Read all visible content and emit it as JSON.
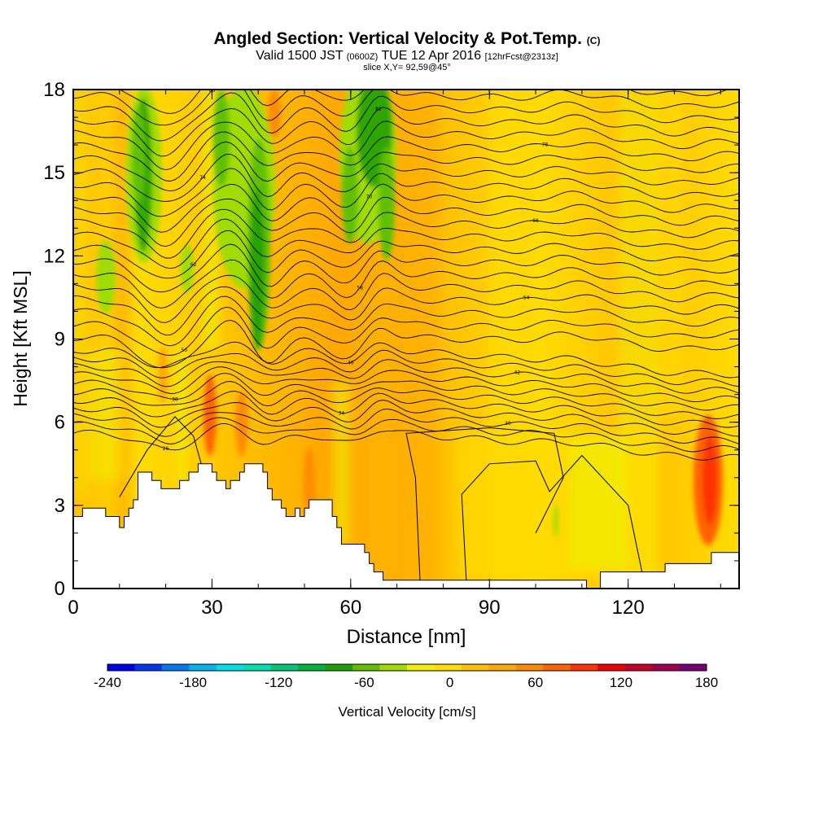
{
  "header": {
    "title_main": "Angled Section: Vertical Velocity & Pot.Temp.",
    "title_units": "(C)",
    "valid_prefix": "Valid 1500 JST",
    "valid_utc": "(0600Z)",
    "valid_date": "TUE 12 Apr 2016",
    "forecast": "[12hrFcst@2313z]",
    "slice": "slice X,Y= 92,59@45°"
  },
  "chart_data": {
    "type": "heatmap",
    "xlabel": "Distance [nm]",
    "ylabel": "Height [Kft MSL]",
    "xlim": [
      0,
      144
    ],
    "ylim": [
      0,
      18
    ],
    "x_ticks": [
      0,
      30,
      60,
      90,
      120
    ],
    "y_ticks": [
      0,
      3,
      6,
      9,
      12,
      15,
      18
    ],
    "colorbar": {
      "label": "Vertical Velocity [cm/s]",
      "min": -240,
      "max": 180,
      "step": 20,
      "tick_labels": [
        "-240",
        "-180",
        "-120",
        "-60",
        "0",
        "60",
        "120",
        "180"
      ],
      "colors": [
        "#0000f0",
        "#0038f0",
        "#0078f0",
        "#00b4f0",
        "#00e0e8",
        "#00e0b0",
        "#00c878",
        "#00b43c",
        "#20a000",
        "#60c000",
        "#a0dc00",
        "#f0f000",
        "#ffdc00",
        "#ffc000",
        "#ffa800",
        "#ff8c00",
        "#ff6400",
        "#ff3200",
        "#f00000",
        "#c80028",
        "#a00050",
        "#780078"
      ]
    },
    "terrain_kft": [
      [
        0,
        2.6
      ],
      [
        2,
        2.6
      ],
      [
        2,
        2.9
      ],
      [
        7,
        2.9
      ],
      [
        7,
        2.6
      ],
      [
        9,
        2.6
      ],
      [
        9,
        2.6
      ],
      [
        10,
        2.6
      ],
      [
        10,
        2.2
      ],
      [
        11,
        2.2
      ],
      [
        11,
        2.6
      ],
      [
        12,
        2.6
      ],
      [
        12,
        2.9
      ],
      [
        13,
        2.9
      ],
      [
        13,
        3.2
      ],
      [
        14,
        3.2
      ],
      [
        14,
        4.2
      ],
      [
        17,
        4.2
      ],
      [
        17,
        3.9
      ],
      [
        19,
        3.9
      ],
      [
        19,
        3.6
      ],
      [
        23,
        3.6
      ],
      [
        23,
        3.9
      ],
      [
        25,
        3.9
      ],
      [
        25,
        4.2
      ],
      [
        27,
        4.2
      ],
      [
        27,
        4.5
      ],
      [
        30,
        4.5
      ],
      [
        30,
        4.2
      ],
      [
        31,
        4.2
      ],
      [
        31,
        3.9
      ],
      [
        33,
        3.9
      ],
      [
        33,
        3.6
      ],
      [
        34,
        3.6
      ],
      [
        34,
        3.9
      ],
      [
        36,
        3.9
      ],
      [
        36,
        4.2
      ],
      [
        37,
        4.2
      ],
      [
        37,
        4.5
      ],
      [
        41,
        4.5
      ],
      [
        41,
        4.2
      ],
      [
        42,
        4.2
      ],
      [
        42,
        3.6
      ],
      [
        43,
        3.6
      ],
      [
        43,
        3.2
      ],
      [
        45,
        3.2
      ],
      [
        45,
        2.9
      ],
      [
        46,
        2.9
      ],
      [
        46,
        2.6
      ],
      [
        48,
        2.6
      ],
      [
        48,
        2.9
      ],
      [
        49,
        2.9
      ],
      [
        49,
        2.6
      ],
      [
        50,
        2.6
      ],
      [
        50,
        2.9
      ],
      [
        51,
        2.9
      ],
      [
        51,
        3.2
      ],
      [
        53,
        3.2
      ],
      [
        53,
        3.2
      ],
      [
        56,
        3.2
      ],
      [
        56,
        2.6
      ],
      [
        57,
        2.6
      ],
      [
        57,
        2.2
      ],
      [
        58,
        2.2
      ],
      [
        58,
        1.6
      ],
      [
        63,
        1.6
      ],
      [
        63,
        1.3
      ],
      [
        64,
        1.3
      ],
      [
        64,
        0.9
      ],
      [
        65,
        0.9
      ],
      [
        65,
        0.6
      ],
      [
        67,
        0.6
      ],
      [
        67,
        0.3
      ],
      [
        111,
        0.3
      ],
      [
        111,
        0
      ],
      [
        114,
        0
      ],
      [
        114,
        0.6
      ],
      [
        128,
        0.6
      ],
      [
        128,
        0.9
      ],
      [
        138,
        0.9
      ],
      [
        138,
        1.3
      ],
      [
        144,
        1.3
      ]
    ],
    "isentrope_labels": [
      "26",
      "30",
      "34",
      "38",
      "42",
      "46",
      "50",
      "54",
      "58",
      "62",
      "66",
      "70",
      "74",
      "78",
      "82",
      "86",
      "90",
      "94",
      "98"
    ]
  },
  "colors": {
    "background_field": "#ffdc00",
    "terrain": "#ffffff",
    "contour": "#000000"
  }
}
